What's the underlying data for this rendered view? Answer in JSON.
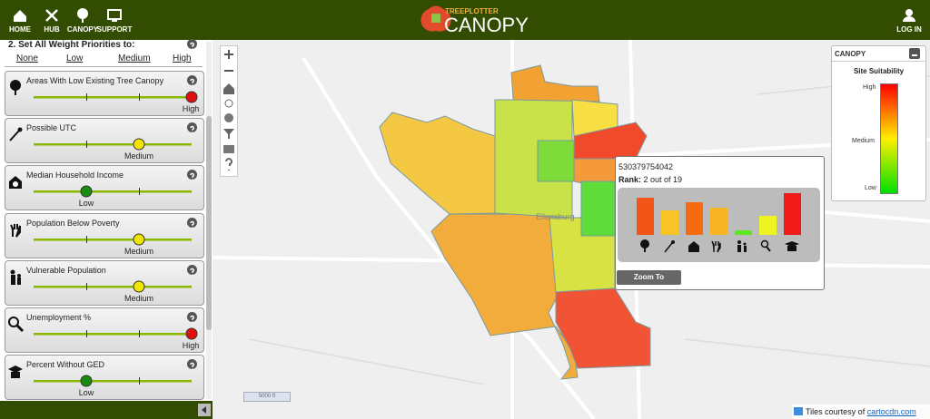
{
  "nav": {
    "items": [
      "HOME",
      "HUB",
      "CANOPY",
      "SUPPORT"
    ],
    "login": "LOG IN"
  },
  "logo": {
    "brand": "TREEPLOTTER",
    "product": "CANOPY"
  },
  "panel": {
    "heading": "2. Set All Weight Priorities to:",
    "options": [
      "None",
      "Low",
      "Medium",
      "High"
    ],
    "sliders": [
      {
        "label": "Areas With Low Existing Tree Canopy",
        "level": "High",
        "knob_color": "#e01010"
      },
      {
        "label": "Possible UTC",
        "level": "Medium",
        "knob_color": "#f2e600"
      },
      {
        "label": "Median Household Income",
        "level": "Low",
        "knob_color": "#1a8a10"
      },
      {
        "label": "Population Below Poverty",
        "level": "Medium",
        "knob_color": "#f2e600"
      },
      {
        "label": "Vulnerable Population",
        "level": "Medium",
        "knob_color": "#f2e600"
      },
      {
        "label": "Unemployment %",
        "level": "High",
        "knob_color": "#e01010"
      },
      {
        "label": "Percent Without GED",
        "level": "Low",
        "knob_color": "#1a8a10"
      }
    ]
  },
  "map": {
    "place": "Ellensburg",
    "scale": "5000 ft"
  },
  "legend": {
    "title": "CANOPY",
    "subtitle": "Site Suitability",
    "labels": [
      "High",
      "Medium",
      "Low"
    ]
  },
  "popup": {
    "id": "530379754042",
    "rank_label": "Rank:",
    "rank": "2 out of 19",
    "bars": {
      "values": [
        41,
        27,
        36,
        30,
        5,
        21,
        46
      ],
      "colors": [
        "#f25518",
        "#f8c424",
        "#f66a12",
        "#f8b424",
        "#5ee620",
        "#eef424",
        "#f01a18"
      ]
    },
    "button": "Zoom To"
  },
  "attribution": {
    "text": "Tiles courtesy of",
    "link": "cartocdn.com"
  }
}
